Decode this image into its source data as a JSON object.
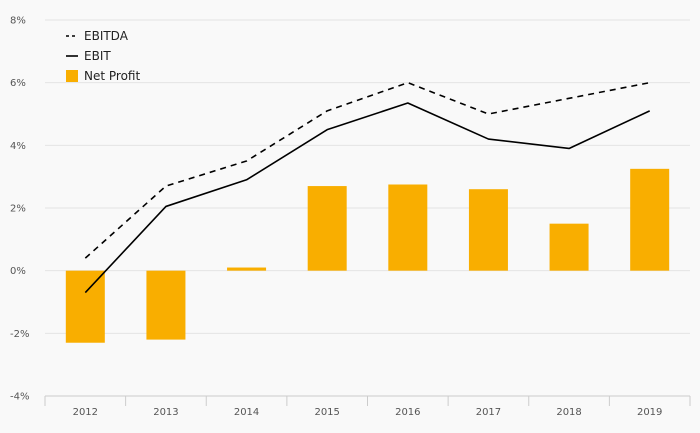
{
  "chart_data": {
    "type": "bar",
    "categories": [
      "2012",
      "2013",
      "2014",
      "2015",
      "2016",
      "2017",
      "2018",
      "2019"
    ],
    "series": [
      {
        "name": "Net Profit",
        "type": "bar",
        "color": "#f9ae00",
        "values": [
          -2.3,
          -2.2,
          0.1,
          2.7,
          2.75,
          2.6,
          1.5,
          3.25
        ]
      },
      {
        "name": "EBITDA",
        "type": "line",
        "style": "dashed",
        "color": "#000000",
        "values": [
          0.4,
          2.7,
          3.5,
          5.1,
          6.0,
          5.0,
          5.5,
          6.0
        ]
      },
      {
        "name": "EBIT",
        "type": "line",
        "style": "solid",
        "color": "#000000",
        "values": [
          -0.7,
          2.05,
          2.9,
          4.5,
          5.35,
          4.2,
          3.9,
          5.1
        ]
      }
    ],
    "y_ticks": [
      "8%",
      "6%",
      "4%",
      "2%",
      "0%",
      "-2%",
      "-4%"
    ],
    "ylim": [
      -4,
      8
    ],
    "grid": true,
    "legend_position": "top-left",
    "legend_order": [
      "EBITDA",
      "EBIT",
      "Net Profit"
    ]
  }
}
